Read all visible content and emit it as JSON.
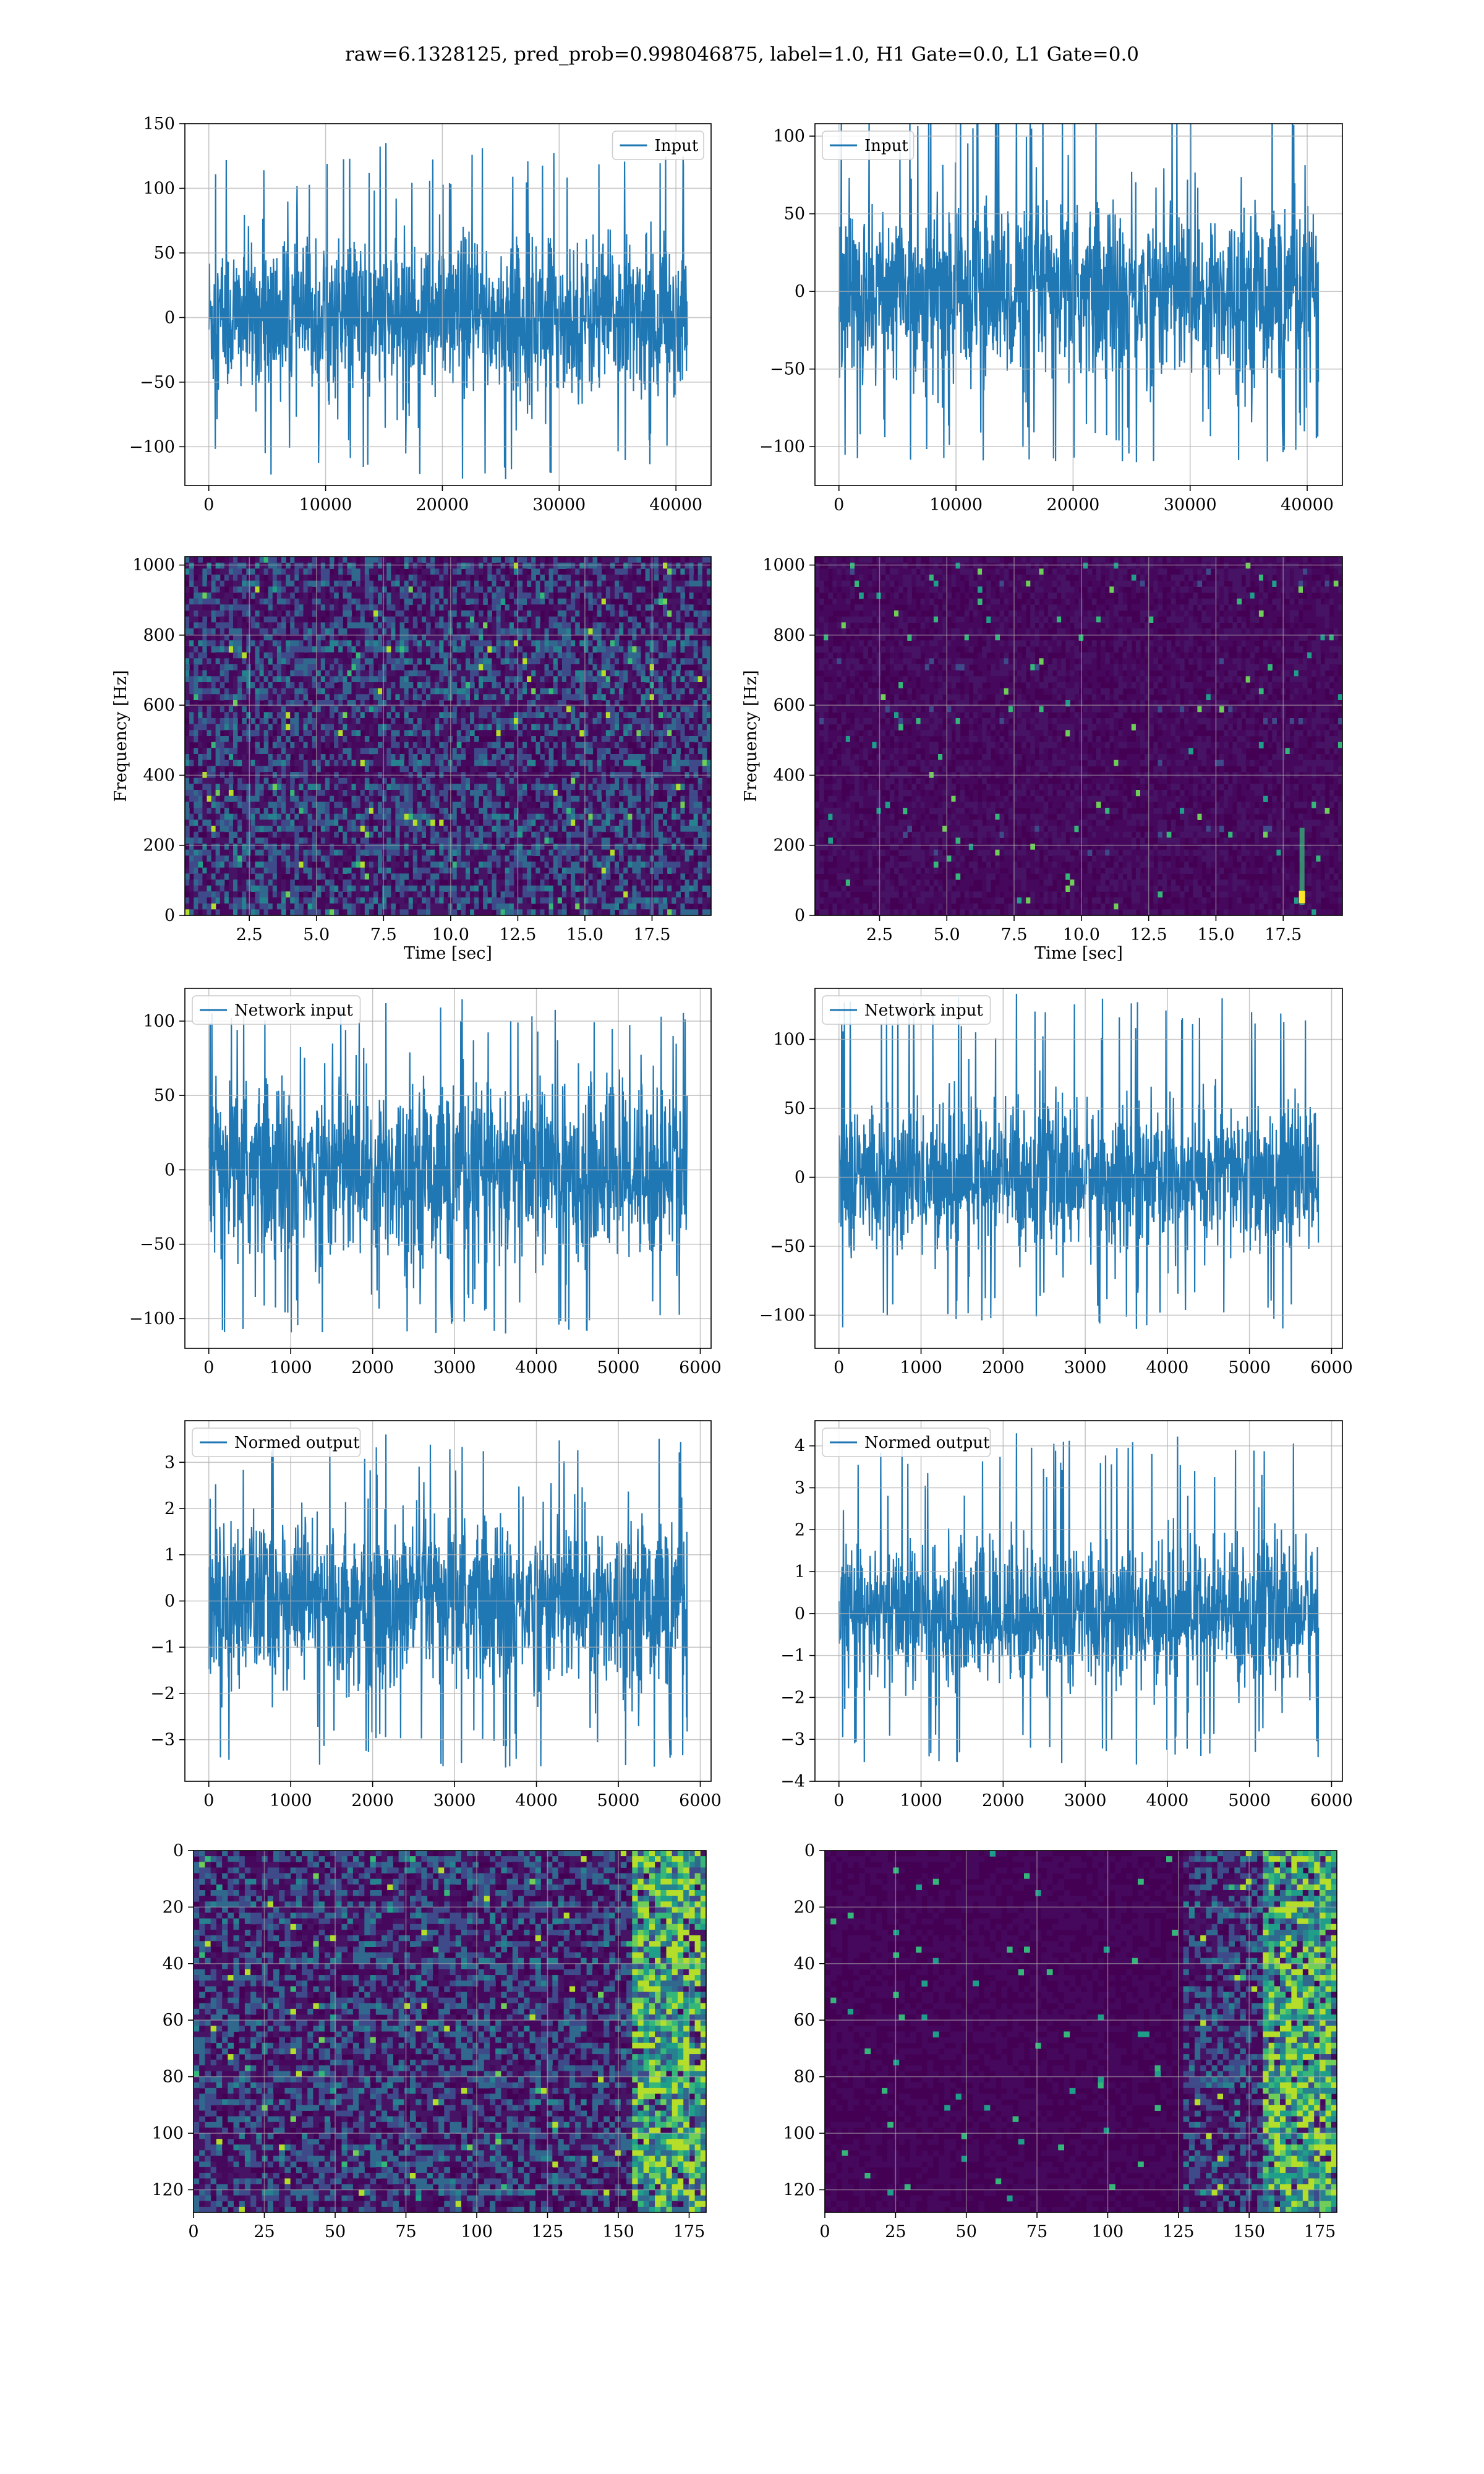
{
  "figure": {
    "title": "raw=6.1328125, pred_prob=0.998046875, label=1.0, H1 Gate=0.0, L1 Gate=0.0"
  },
  "colors": {
    "line": "#1f77b4",
    "grid": "#b0b0b0",
    "spectrogram_base": "#440154"
  },
  "chart_data": [
    {
      "id": "r1c1",
      "type": "line",
      "series": [
        {
          "name": "Input",
          "n": 40960,
          "amplitude_std": 30,
          "peaks_max": 135,
          "peaks_min": -125
        }
      ],
      "xlim": [
        -2048,
        43008
      ],
      "ylim": [
        -130,
        150
      ],
      "xticks": [
        0,
        10000,
        20000,
        30000,
        40000
      ],
      "yticks": [
        -100,
        -50,
        0,
        50,
        100,
        150
      ],
      "legend_loc": "upper right",
      "grid": true
    },
    {
      "id": "r1c2",
      "type": "line",
      "series": [
        {
          "name": "Input",
          "n": 40960,
          "amplitude_std": 28,
          "peaks_max": 130,
          "peaks_min": -110
        }
      ],
      "xlim": [
        -2048,
        43008
      ],
      "ylim": [
        -125,
        108
      ],
      "xticks": [
        0,
        10000,
        20000,
        30000,
        40000
      ],
      "yticks": [
        -100,
        -50,
        0,
        50,
        100
      ],
      "legend_loc": "upper left",
      "grid": true
    },
    {
      "id": "r2c1",
      "type": "heatmap",
      "colormap": "viridis",
      "xlabel": "Time [sec]",
      "ylabel": "Frequency [Hz]",
      "xlim": [
        0.1,
        19.7
      ],
      "ylim": [
        0,
        1024
      ],
      "xticks": [
        2.5,
        5.0,
        7.5,
        10.0,
        12.5,
        15.0,
        17.5
      ],
      "yticks": [
        0,
        200,
        400,
        600,
        800,
        1000
      ],
      "grid": true
    },
    {
      "id": "r2c2",
      "type": "heatmap",
      "colormap": "viridis",
      "xlabel": "Time [sec]",
      "ylabel": "Frequency [Hz]",
      "xlim": [
        0.1,
        19.7
      ],
      "ylim": [
        0,
        1024
      ],
      "xticks": [
        2.5,
        5.0,
        7.5,
        10.0,
        12.5,
        15.0,
        17.5
      ],
      "yticks": [
        0,
        200,
        400,
        600,
        800,
        1000
      ],
      "grid": true,
      "feature": {
        "time": 18.2,
        "freq_low": 30,
        "freq_high": 250
      }
    },
    {
      "id": "r3c1",
      "type": "line",
      "series": [
        {
          "name": "Network input",
          "n": 5840,
          "amplitude_std": 30,
          "peaks_max": 112,
          "peaks_min": -110
        }
      ],
      "xlim": [
        -292,
        6132
      ],
      "ylim": [
        -120,
        122
      ],
      "xticks": [
        0,
        1000,
        2000,
        3000,
        4000,
        5000,
        6000
      ],
      "yticks": [
        -100,
        -50,
        0,
        50,
        100
      ],
      "legend_loc": "upper left",
      "grid": true
    },
    {
      "id": "r3c2",
      "type": "line",
      "series": [
        {
          "name": "Network input",
          "n": 5840,
          "amplitude_std": 26,
          "peaks_max": 133,
          "peaks_min": -110
        }
      ],
      "xlim": [
        -292,
        6132
      ],
      "ylim": [
        -124,
        137
      ],
      "xticks": [
        0,
        1000,
        2000,
        3000,
        4000,
        5000,
        6000
      ],
      "yticks": [
        -100,
        -50,
        0,
        50,
        100
      ],
      "legend_loc": "upper left",
      "grid": true
    },
    {
      "id": "r4c1",
      "type": "line",
      "series": [
        {
          "name": "Normed output",
          "n": 5840,
          "amplitude_std": 0.9,
          "peaks_max": 3.6,
          "peaks_min": -3.6
        }
      ],
      "xlim": [
        -292,
        6132
      ],
      "ylim": [
        -3.9,
        3.9
      ],
      "xticks": [
        0,
        1000,
        2000,
        3000,
        4000,
        5000,
        6000
      ],
      "yticks": [
        -3,
        -2,
        -1,
        0,
        1,
        2,
        3
      ],
      "legend_loc": "upper left",
      "grid": true
    },
    {
      "id": "r4c2",
      "type": "line",
      "series": [
        {
          "name": "Normed output",
          "n": 5840,
          "amplitude_std": 0.85,
          "peaks_max": 4.3,
          "peaks_min": -3.6
        }
      ],
      "xlim": [
        -292,
        6132
      ],
      "ylim": [
        -4.0,
        4.6
      ],
      "xticks": [
        0,
        1000,
        2000,
        3000,
        4000,
        5000,
        6000
      ],
      "yticks": [
        -4,
        -3,
        -2,
        -1,
        0,
        1,
        2,
        3,
        4
      ],
      "legend_loc": "upper left",
      "grid": true
    },
    {
      "id": "r5c1",
      "type": "heatmap",
      "colormap": "viridis",
      "xlim": [
        0,
        181
      ],
      "ylim": [
        128,
        0
      ],
      "xticks": [
        0,
        25,
        50,
        75,
        100,
        125,
        150,
        175
      ],
      "yticks": [
        0,
        20,
        40,
        60,
        80,
        100,
        120
      ],
      "grid": true
    },
    {
      "id": "r5c2",
      "type": "heatmap",
      "colormap": "viridis",
      "xlim": [
        0,
        181
      ],
      "ylim": [
        128,
        0
      ],
      "xticks": [
        0,
        25,
        50,
        75,
        100,
        125,
        150,
        175
      ],
      "yticks": [
        0,
        20,
        40,
        60,
        80,
        100,
        120
      ],
      "grid": true
    }
  ]
}
